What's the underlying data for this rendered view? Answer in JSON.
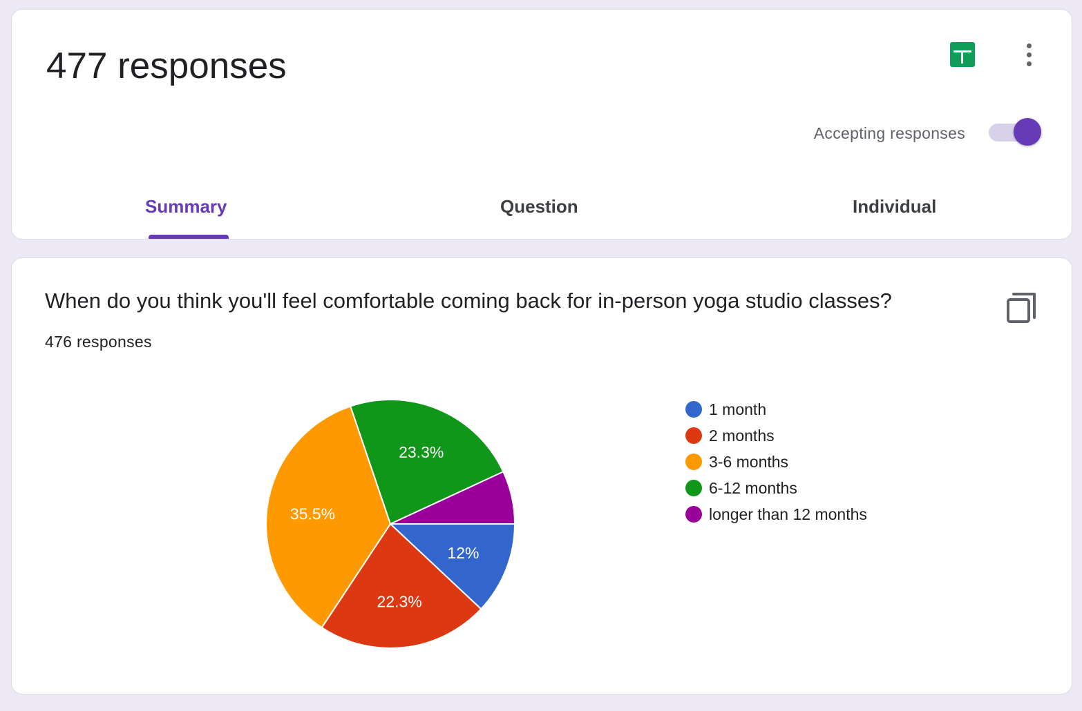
{
  "header": {
    "title": "477 responses",
    "accepting_label": "Accepting responses",
    "accepting_on": true,
    "accent_color": "#673ab7",
    "sheets_icon": "google-sheets-icon",
    "more_icon": "more-vert-icon"
  },
  "tabs": [
    {
      "label": "Summary",
      "active": true
    },
    {
      "label": "Question",
      "active": false
    },
    {
      "label": "Individual",
      "active": false
    }
  ],
  "question": {
    "title": "When do you think you'll feel comfortable coming back for in-person yoga studio classes?",
    "response_count": "476 responses",
    "copy_icon": "copy-icon"
  },
  "chart_data": {
    "type": "pie",
    "categories": [
      "1 month",
      "2 months",
      "3-6 months",
      "6-12 months",
      "longer than 12 months"
    ],
    "values": [
      12,
      22.3,
      35.5,
      23.3,
      6.9
    ],
    "labels": [
      "12%",
      "22.3%",
      "35.5%",
      "23.3%",
      ""
    ],
    "colors": [
      "#3366cc",
      "#dc3912",
      "#ff9900",
      "#109618",
      "#990099"
    ],
    "legend_position": "right"
  }
}
